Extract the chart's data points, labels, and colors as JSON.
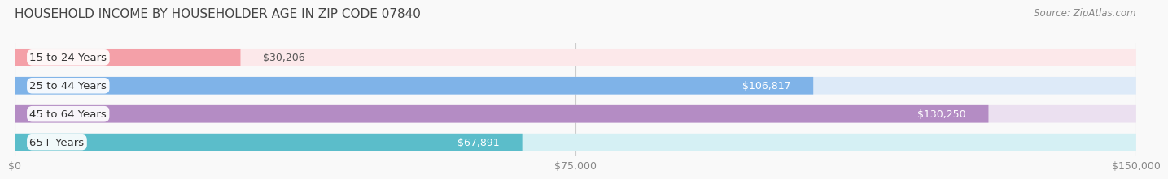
{
  "title": "HOUSEHOLD INCOME BY HOUSEHOLDER AGE IN ZIP CODE 07840",
  "source": "Source: ZipAtlas.com",
  "categories": [
    "15 to 24 Years",
    "25 to 44 Years",
    "45 to 64 Years",
    "65+ Years"
  ],
  "values": [
    30206,
    106817,
    130250,
    67891
  ],
  "bar_colors": [
    "#f4a0a8",
    "#7fb3e8",
    "#b48cc4",
    "#5bbdca"
  ],
  "bar_bg_colors": [
    "#fce8ea",
    "#ddeaf8",
    "#ebe0f0",
    "#d5f0f4"
  ],
  "label_colors": [
    "#888888",
    "#ffffff",
    "#ffffff",
    "#555555"
  ],
  "bar_height": 0.62,
  "xlim": [
    0,
    150000
  ],
  "xticks": [
    0,
    75000,
    150000
  ],
  "xtick_labels": [
    "$0",
    "$75,000",
    "$150,000"
  ],
  "value_labels": [
    "$30,206",
    "$106,817",
    "$130,250",
    "$67,891"
  ],
  "title_fontsize": 11,
  "source_fontsize": 8.5,
  "label_fontsize": 9.5,
  "tick_fontsize": 9,
  "value_fontsize": 9,
  "background_color": "#f9f9f9",
  "bar_bg_alpha": 1.0
}
